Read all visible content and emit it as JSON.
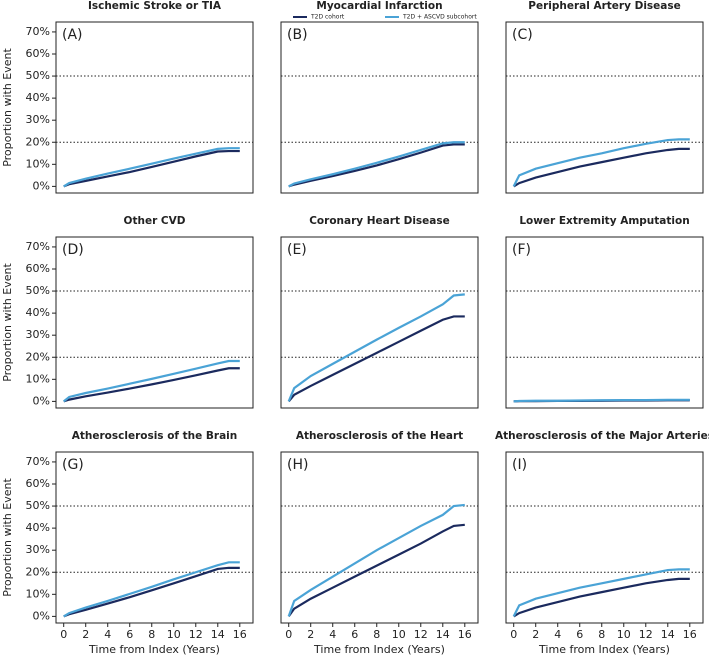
{
  "chart_data": [
    {
      "type": "line",
      "title": "Ischemic Stroke or TIA",
      "panel_label": "(A)",
      "ylabel": "Proportion with Event",
      "x": [
        0,
        0.5,
        2,
        4,
        6,
        8,
        10,
        12,
        14,
        15,
        16
      ],
      "xlim": [
        -0.7,
        17.2
      ],
      "ylim": [
        -3,
        74.5
      ],
      "yticks": [
        {
          "value": 0,
          "label": "0%"
        },
        {
          "value": 10,
          "label": "10%"
        },
        {
          "value": 20,
          "label": "20%"
        },
        {
          "value": 30,
          "label": "30%"
        },
        {
          "value": 40,
          "label": "40%"
        },
        {
          "value": 50,
          "label": "50%"
        },
        {
          "value": 60,
          "label": "60%"
        },
        {
          "value": 70,
          "label": "70%"
        }
      ],
      "hlines": [
        20,
        50
      ],
      "series": [
        {
          "name": "T2D cohort",
          "color": "#1b2a5e",
          "values": [
            0,
            1,
            2.5,
            4.5,
            6.5,
            8.8,
            11.2,
            13.6,
            15.8,
            16,
            16
          ]
        },
        {
          "name": "T2D + ASCVD subcohort",
          "color": "#4aa3d6",
          "values": [
            0,
            1.5,
            3.5,
            5.8,
            8,
            10.3,
            12.6,
            14.8,
            17,
            17.3,
            17.3
          ]
        }
      ]
    },
    {
      "type": "line",
      "title": "Myocardial Infarction",
      "panel_label": "(B)",
      "legend": "top",
      "x": [
        0,
        0.5,
        2,
        4,
        6,
        8,
        10,
        12,
        14,
        15,
        16
      ],
      "xlim": [
        -0.7,
        17.2
      ],
      "ylim": [
        -3,
        74.5
      ],
      "hlines": [
        20,
        50
      ],
      "series": [
        {
          "name": "T2D cohort",
          "color": "#1b2a5e",
          "values": [
            0,
            0.8,
            2.5,
            4.7,
            7,
            9.5,
            12.3,
            15.3,
            18.5,
            19,
            19
          ]
        },
        {
          "name": "T2D + ASCVD subcohort",
          "color": "#4aa3d6",
          "values": [
            0,
            1.3,
            3.2,
            5.5,
            8,
            10.7,
            13.5,
            16.5,
            19.5,
            20,
            20
          ]
        }
      ]
    },
    {
      "type": "line",
      "title": "Peripheral Artery Disease",
      "panel_label": "(C)",
      "x": [
        0,
        0.5,
        2,
        4,
        6,
        8,
        10,
        12,
        14,
        15,
        16
      ],
      "xlim": [
        -0.7,
        17.2
      ],
      "ylim": [
        -3,
        74.5
      ],
      "hlines": [
        20,
        50
      ],
      "series": [
        {
          "name": "T2D cohort",
          "color": "#1b2a5e",
          "values": [
            0,
            1.5,
            4,
            6.5,
            9,
            11,
            13,
            15,
            16.5,
            17,
            17
          ]
        },
        {
          "name": "T2D + ASCVD subcohort",
          "color": "#4aa3d6",
          "values": [
            0,
            5,
            8,
            10.5,
            13,
            15,
            17.3,
            19.3,
            21,
            21.3,
            21.3
          ]
        }
      ]
    },
    {
      "type": "line",
      "title": "Other CVD",
      "panel_label": "(D)",
      "ylabel": "Proportion with Event",
      "x": [
        0,
        0.5,
        2,
        4,
        6,
        8,
        10,
        12,
        14,
        15,
        16
      ],
      "xlim": [
        -0.7,
        17.2
      ],
      "ylim": [
        -3,
        74.5
      ],
      "yticks": [
        {
          "value": 0,
          "label": "0%"
        },
        {
          "value": 10,
          "label": "10%"
        },
        {
          "value": 20,
          "label": "20%"
        },
        {
          "value": 30,
          "label": "30%"
        },
        {
          "value": 40,
          "label": "40%"
        },
        {
          "value": 50,
          "label": "50%"
        },
        {
          "value": 60,
          "label": "60%"
        },
        {
          "value": 70,
          "label": "70%"
        }
      ],
      "hlines": [
        20,
        50
      ],
      "series": [
        {
          "name": "T2D cohort",
          "color": "#1b2a5e",
          "values": [
            0,
            0.8,
            2.3,
            4,
            5.8,
            7.7,
            9.7,
            11.8,
            14,
            15,
            15
          ]
        },
        {
          "name": "T2D + ASCVD subcohort",
          "color": "#4aa3d6",
          "values": [
            0,
            2,
            3.8,
            5.8,
            8,
            10.2,
            12.5,
            14.8,
            17.2,
            18.3,
            18.3
          ]
        }
      ]
    },
    {
      "type": "line",
      "title": "Coronary Heart Disease",
      "panel_label": "(E)",
      "x": [
        0,
        0.5,
        2,
        4,
        6,
        8,
        10,
        12,
        14,
        15,
        16
      ],
      "xlim": [
        -0.7,
        17.2
      ],
      "ylim": [
        -3,
        74.5
      ],
      "hlines": [
        20,
        50
      ],
      "series": [
        {
          "name": "T2D cohort",
          "color": "#1b2a5e",
          "values": [
            0,
            3,
            7,
            12,
            17,
            22,
            27,
            32,
            37,
            38.5,
            38.5
          ]
        },
        {
          "name": "T2D + ASCVD subcohort",
          "color": "#4aa3d6",
          "values": [
            0,
            6,
            11.5,
            17,
            22.5,
            28,
            33.3,
            38.5,
            44,
            48,
            48.5
          ]
        }
      ]
    },
    {
      "type": "line",
      "title": "Lower Extremity Amputation",
      "panel_label": "(F)",
      "x": [
        0,
        0.5,
        2,
        4,
        6,
        8,
        10,
        12,
        14,
        15,
        16
      ],
      "xlim": [
        -0.7,
        17.2
      ],
      "ylim": [
        -3,
        74.5
      ],
      "hlines": [
        20,
        50
      ],
      "series": [
        {
          "name": "T2D cohort",
          "color": "#1b2a5e",
          "values": [
            0,
            0.1,
            0.1,
            0.2,
            0.2,
            0.3,
            0.4,
            0.4,
            0.5,
            0.5,
            0.5
          ]
        },
        {
          "name": "T2D + ASCVD subcohort",
          "color": "#4aa3d6",
          "values": [
            0,
            0.2,
            0.3,
            0.3,
            0.4,
            0.5,
            0.6,
            0.6,
            0.7,
            0.7,
            0.7
          ]
        }
      ]
    },
    {
      "type": "line",
      "title": "Atherosclerosis of the Brain",
      "panel_label": "(G)",
      "ylabel": "Proportion with Event",
      "xlabel": "Time from Index (Years)",
      "x": [
        0,
        0.5,
        2,
        4,
        6,
        8,
        10,
        12,
        14,
        15,
        16
      ],
      "xlim": [
        -0.7,
        17.2
      ],
      "ylim": [
        -3,
        74.5
      ],
      "xticks": [
        0,
        2,
        4,
        6,
        8,
        10,
        12,
        14,
        16
      ],
      "yticks": [
        {
          "value": 0,
          "label": "0%"
        },
        {
          "value": 10,
          "label": "10%"
        },
        {
          "value": 20,
          "label": "20%"
        },
        {
          "value": 30,
          "label": "30%"
        },
        {
          "value": 40,
          "label": "40%"
        },
        {
          "value": 50,
          "label": "50%"
        },
        {
          "value": 60,
          "label": "60%"
        },
        {
          "value": 70,
          "label": "70%"
        }
      ],
      "hlines": [
        20,
        50
      ],
      "series": [
        {
          "name": "T2D cohort",
          "color": "#1b2a5e",
          "values": [
            0,
            1,
            3,
            5.8,
            8.7,
            11.8,
            15,
            18.2,
            21.5,
            22,
            22
          ]
        },
        {
          "name": "T2D + ASCVD subcohort",
          "color": "#4aa3d6",
          "values": [
            0,
            1.5,
            4,
            7,
            10.2,
            13.4,
            16.8,
            20,
            23.2,
            24.5,
            24.5
          ]
        }
      ]
    },
    {
      "type": "line",
      "title": "Atherosclerosis of the Heart",
      "panel_label": "(H)",
      "xlabel": "Time from Index (Years)",
      "x": [
        0,
        0.5,
        2,
        4,
        6,
        8,
        10,
        12,
        14,
        15,
        16
      ],
      "xlim": [
        -0.7,
        17.2
      ],
      "ylim": [
        -3,
        74.5
      ],
      "xticks": [
        0,
        2,
        4,
        6,
        8,
        10,
        12,
        14,
        16
      ],
      "hlines": [
        20,
        50
      ],
      "series": [
        {
          "name": "T2D cohort",
          "color": "#1b2a5e",
          "values": [
            0,
            3.5,
            8,
            13,
            18,
            23,
            28,
            33,
            38.5,
            41,
            41.5
          ]
        },
        {
          "name": "T2D + ASCVD subcohort",
          "color": "#4aa3d6",
          "values": [
            0,
            7,
            12,
            18,
            24,
            30,
            35.5,
            41,
            46,
            50,
            50.5
          ]
        }
      ]
    },
    {
      "type": "line",
      "title": "Atherosclerosis of the Major Arteries",
      "panel_label": "(I)",
      "xlabel": "Time from Index (Years)",
      "x": [
        0,
        0.5,
        2,
        4,
        6,
        8,
        10,
        12,
        14,
        15,
        16
      ],
      "xlim": [
        -0.7,
        17.2
      ],
      "ylim": [
        -3,
        74.5
      ],
      "xticks": [
        0,
        2,
        4,
        6,
        8,
        10,
        12,
        14,
        16
      ],
      "hlines": [
        20,
        50
      ],
      "series": [
        {
          "name": "T2D cohort",
          "color": "#1b2a5e",
          "values": [
            0,
            1.5,
            4,
            6.5,
            9,
            11,
            13,
            15,
            16.5,
            17,
            17
          ]
        },
        {
          "name": "T2D + ASCVD subcohort",
          "color": "#4aa3d6",
          "values": [
            0,
            5,
            8,
            10.5,
            13,
            15,
            17,
            19,
            21,
            21.3,
            21.3
          ]
        }
      ]
    }
  ]
}
